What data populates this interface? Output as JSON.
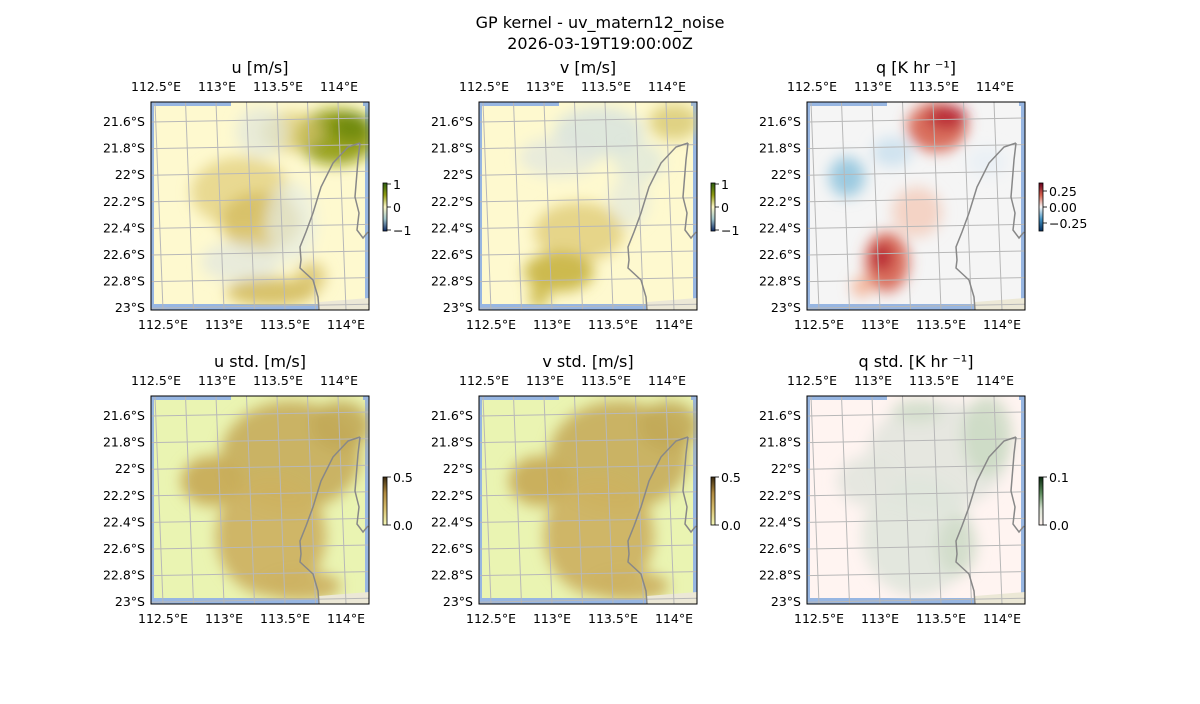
{
  "figure": {
    "title_line1": "GP kernel - uv_matern12_noise",
    "title_line2": "2026-03-19T19:00:00Z"
  },
  "axes": {
    "lon_ticks": [
      "112.5°E",
      "113°E",
      "113.5°E",
      "114°E"
    ],
    "lat_ticks": [
      "21.6°S",
      "21.8°S",
      "22°S",
      "22.2°S",
      "22.4°S",
      "22.6°S",
      "22.8°S",
      "23°S"
    ]
  },
  "panels": [
    {
      "title": "u [m/s]",
      "field": "u",
      "colorbar_ticks": [
        "1",
        "0",
        "−1"
      ],
      "colorbar_colors": [
        "#2d5f10",
        "#8f9a10",
        "#fdf8c8",
        "#9ec3c9",
        "#0d2a66"
      ],
      "background": "#fef9cf"
    },
    {
      "title": "v [m/s]",
      "field": "v",
      "colorbar_ticks": [
        "1",
        "0",
        "−1"
      ],
      "colorbar_colors": [
        "#2d5f10",
        "#8f9a10",
        "#fdf8c8",
        "#9ec3c9",
        "#0d2a66"
      ],
      "background": "#fef9cf"
    },
    {
      "title": "q [K hr ⁻¹]",
      "field": "q",
      "colorbar_ticks": [
        "0.25",
        "0.00",
        "−0.25"
      ],
      "colorbar_colors": [
        "#67001f",
        "#d6604d",
        "#f7f7f7",
        "#4393c3",
        "#053061"
      ],
      "background": "#f5f5f5"
    },
    {
      "title": "u std. [m/s]",
      "field": "u_std",
      "colorbar_ticks": [
        "0.5",
        "0.0"
      ],
      "colorbar_colors": [
        "#3a2a10",
        "#b08a40",
        "#d8c070",
        "#f4f8b8"
      ],
      "background": "#eaf4b2"
    },
    {
      "title": "v std. [m/s]",
      "field": "v_std",
      "colorbar_ticks": [
        "0.5",
        "0.0"
      ],
      "colorbar_colors": [
        "#3a2a10",
        "#b08a40",
        "#d8c070",
        "#f4f8b8"
      ],
      "background": "#eaf4b2"
    },
    {
      "title": "q std. [K hr ⁻¹]",
      "field": "q_std",
      "colorbar_ticks": [
        "0.1",
        "0.0"
      ],
      "colorbar_colors": [
        "#0a2a10",
        "#5a8a5a",
        "#d8e2d2",
        "#fff4f0"
      ],
      "background": "#fff4f1"
    }
  ],
  "colors": {
    "water": "#97b6e2",
    "land": "#ece8d6",
    "coastline": "#888888",
    "grid": "#b8b8b8"
  }
}
